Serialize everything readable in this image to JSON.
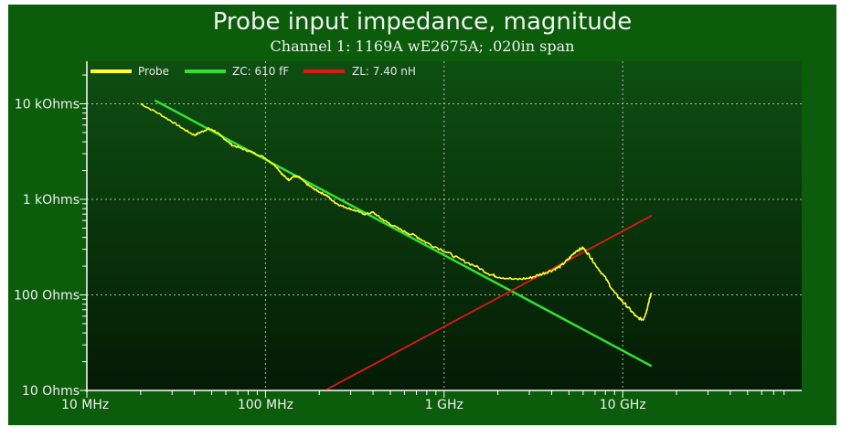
{
  "chart_data": {
    "type": "line",
    "title": "Probe input impedance, magnitude",
    "subtitle": "Channel 1: 1169A wE2675A; .020in span",
    "x_scale": "log",
    "y_scale": "log",
    "xlim_hz": [
      10000000,
      80000000000
    ],
    "ylim_ohms": [
      10,
      20000
    ],
    "x_ticks": [
      {
        "value": 10000000,
        "label": "10 MHz"
      },
      {
        "value": 100000000,
        "label": "100 MHz"
      },
      {
        "value": 1000000000,
        "label": "1 GHz"
      },
      {
        "value": 10000000000,
        "label": "10 GHz"
      }
    ],
    "y_ticks": [
      {
        "value": 10,
        "label": "10 Ohms"
      },
      {
        "value": 100,
        "label": "100 Ohms"
      },
      {
        "value": 1000,
        "label": "1 kOhms"
      },
      {
        "value": 10000,
        "label": "10 kOhms"
      }
    ],
    "grid": true,
    "legend_position": "top-left",
    "background_colors": {
      "plot_top": "#0e4f12",
      "plot_bottom": "#041a04",
      "frame": "#0b5c0b"
    },
    "series": [
      {
        "name": "Probe",
        "color": "#ffff33",
        "points": [
          [
            20000000,
            10000
          ],
          [
            25000000,
            8000
          ],
          [
            30000000,
            6500
          ],
          [
            35000000,
            5400
          ],
          [
            40000000,
            4700
          ],
          [
            44000000,
            5100
          ],
          [
            48000000,
            5500
          ],
          [
            52000000,
            5200
          ],
          [
            58000000,
            4400
          ],
          [
            65000000,
            3700
          ],
          [
            75000000,
            3350
          ],
          [
            85000000,
            3100
          ],
          [
            100000000,
            2700
          ],
          [
            115000000,
            2200
          ],
          [
            125000000,
            1800
          ],
          [
            135000000,
            1600
          ],
          [
            145000000,
            1750
          ],
          [
            155000000,
            1700
          ],
          [
            170000000,
            1450
          ],
          [
            185000000,
            1300
          ],
          [
            200000000,
            1200
          ],
          [
            220000000,
            1100
          ],
          [
            240000000,
            950
          ],
          [
            260000000,
            870
          ],
          [
            290000000,
            810
          ],
          [
            320000000,
            760
          ],
          [
            360000000,
            700
          ],
          [
            400000000,
            730
          ],
          [
            450000000,
            620
          ],
          [
            500000000,
            550
          ],
          [
            600000000,
            460
          ],
          [
            700000000,
            410
          ],
          [
            800000000,
            350
          ],
          [
            1000000000,
            290
          ],
          [
            1200000000,
            240
          ],
          [
            1500000000,
            200
          ],
          [
            1800000000,
            165
          ],
          [
            2000000000,
            155
          ],
          [
            2500000000,
            145
          ],
          [
            3000000000,
            150
          ],
          [
            3500000000,
            165
          ],
          [
            4000000000,
            180
          ],
          [
            4500000000,
            200
          ],
          [
            5000000000,
            240
          ],
          [
            5500000000,
            290
          ],
          [
            6000000000,
            310
          ],
          [
            6500000000,
            260
          ],
          [
            7000000000,
            210
          ],
          [
            8000000000,
            150
          ],
          [
            9000000000,
            105
          ],
          [
            10000000000,
            85
          ],
          [
            11000000000,
            70
          ],
          [
            12000000000,
            58
          ],
          [
            13000000000,
            55
          ],
          [
            13500000000,
            65
          ],
          [
            14000000000,
            85
          ],
          [
            14500000000,
            105
          ]
        ]
      },
      {
        "name": "ZC: 610 fF",
        "color": "#33e033",
        "capacitance_f": 6.1e-13,
        "x_range_hz": [
          24000000,
          14500000000
        ]
      },
      {
        "name": "ZL: 7.40 nH",
        "color": "#e01818",
        "inductance_h": 7.4e-09,
        "x_range_hz": [
          220000000,
          14500000000
        ]
      }
    ]
  }
}
